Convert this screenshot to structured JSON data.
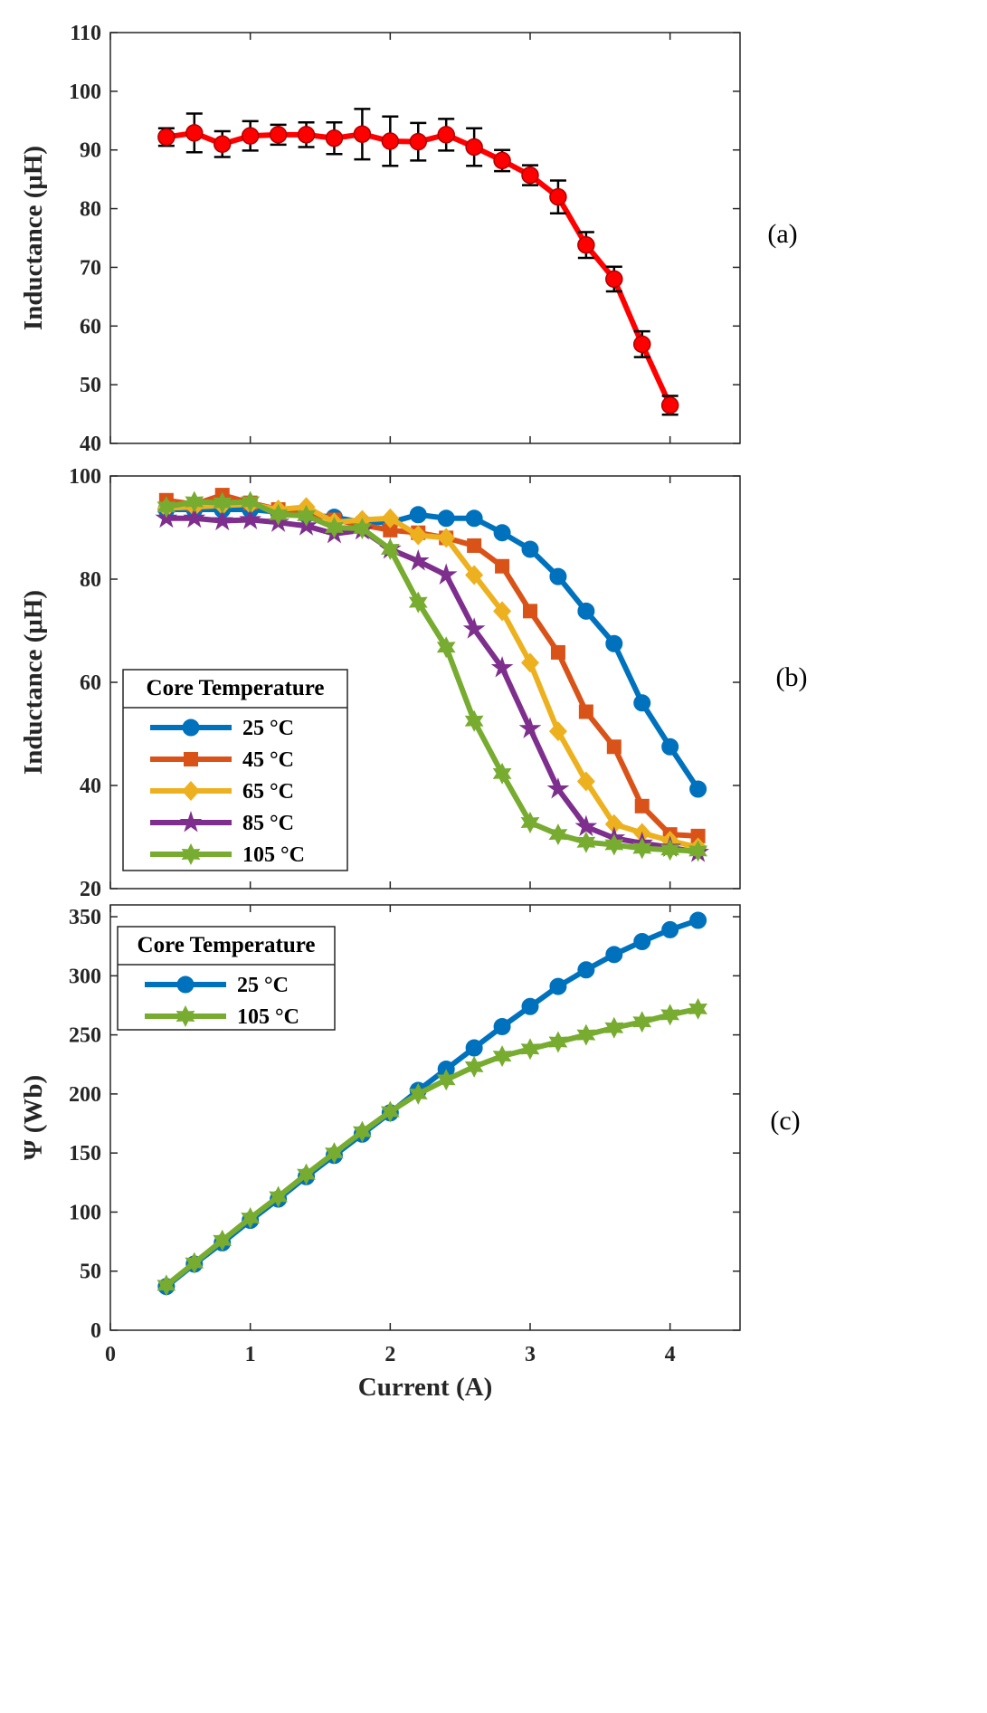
{
  "chart_data": [
    {
      "type": "line",
      "panel_label": "(a)",
      "ylabel": "Inductance (μH)",
      "xlabel": "",
      "xlim": [
        0,
        4.5
      ],
      "ylim": [
        40,
        110
      ],
      "yticks": [
        40,
        50,
        60,
        70,
        80,
        90,
        100,
        110
      ],
      "x": [
        0.4,
        0.6,
        0.8,
        1.0,
        1.2,
        1.4,
        1.6,
        1.8,
        2.0,
        2.2,
        2.4,
        2.6,
        2.8,
        3.0,
        3.2,
        3.4,
        3.6,
        3.8,
        4.0
      ],
      "series": [
        {
          "name": "Inductance",
          "color": "#ff0000",
          "marker": "circle",
          "values": [
            92.2,
            92.9,
            91.0,
            92.4,
            92.6,
            92.6,
            92.0,
            92.7,
            91.5,
            91.4,
            92.6,
            90.5,
            88.2,
            85.7,
            82.0,
            73.8,
            68.0,
            56.9,
            46.5
          ],
          "error": [
            1.5,
            3.3,
            2.2,
            2.5,
            1.7,
            2.1,
            2.7,
            4.3,
            4.2,
            3.2,
            2.7,
            3.2,
            1.8,
            1.7,
            2.8,
            2.2,
            2.1,
            2.2,
            1.6
          ]
        }
      ]
    },
    {
      "type": "line",
      "panel_label": "(b)",
      "ylabel": "Inductance (μH)",
      "xlabel": "",
      "xlim": [
        0,
        4.5
      ],
      "ylim": [
        20,
        100
      ],
      "yticks": [
        20,
        40,
        60,
        80,
        100
      ],
      "legend_title": "Core Temperature",
      "legend_position": "lower-left",
      "x": [
        0.4,
        0.6,
        0.8,
        1.0,
        1.2,
        1.4,
        1.6,
        1.8,
        2.0,
        2.2,
        2.4,
        2.6,
        2.8,
        3.0,
        3.2,
        3.4,
        3.6,
        3.8,
        4.0,
        4.2
      ],
      "series": [
        {
          "name": "25 °C",
          "color": "#0072bd",
          "marker": "circle",
          "values": [
            93.5,
            93.5,
            93.5,
            93.5,
            93.0,
            92.5,
            92.0,
            91.0,
            91.0,
            92.5,
            91.8,
            91.8,
            89.0,
            85.8,
            80.5,
            73.8,
            67.5,
            56.0,
            47.5,
            39.3
          ]
        },
        {
          "name": "45 °C",
          "color": "#d95319",
          "marker": "square",
          "values": [
            95.3,
            94.5,
            96.3,
            94.8,
            93.5,
            93.0,
            91.5,
            90.5,
            89.5,
            89.0,
            88.0,
            86.5,
            82.5,
            73.8,
            65.8,
            54.3,
            47.5,
            36.0,
            30.5,
            30.2
          ]
        },
        {
          "name": "65 °C",
          "color": "#edb120",
          "marker": "diamond",
          "values": [
            93.8,
            94.0,
            94.3,
            94.5,
            93.5,
            94.0,
            91.0,
            91.5,
            91.8,
            88.5,
            88.0,
            80.8,
            73.8,
            63.8,
            50.5,
            40.8,
            32.5,
            30.8,
            29.3,
            28.0
          ]
        },
        {
          "name": "85 °C",
          "color": "#7e2f8e",
          "marker": "star",
          "values": [
            91.8,
            91.8,
            91.3,
            91.5,
            91.0,
            90.3,
            88.8,
            89.5,
            85.8,
            83.5,
            80.8,
            70.3,
            62.8,
            51.0,
            39.3,
            32.0,
            29.8,
            28.8,
            28.0,
            27.0
          ]
        },
        {
          "name": "105 °C",
          "color": "#77ac30",
          "marker": "hexagram",
          "values": [
            94.0,
            95.0,
            94.8,
            95.0,
            92.5,
            92.3,
            90.0,
            89.8,
            85.8,
            75.5,
            66.8,
            52.5,
            42.3,
            32.8,
            30.5,
            29.0,
            28.5,
            27.8,
            27.5,
            27.3
          ]
        }
      ]
    },
    {
      "type": "line",
      "panel_label": "(c)",
      "ylabel": "Ψ (Wb)",
      "xlabel": "Current (A)",
      "xlim": [
        0,
        4.5
      ],
      "ylim": [
        0,
        360
      ],
      "yticks": [
        0,
        50,
        100,
        150,
        200,
        250,
        300,
        350
      ],
      "xticks": [
        0,
        1,
        2,
        3,
        4
      ],
      "legend_title": "Core Temperature",
      "legend_position": "top-left",
      "x": [
        0.4,
        0.6,
        0.8,
        1.0,
        1.2,
        1.4,
        1.6,
        1.8,
        2.0,
        2.2,
        2.4,
        2.6,
        2.8,
        3.0,
        3.2,
        3.4,
        3.6,
        3.8,
        4.0,
        4.2
      ],
      "series": [
        {
          "name": "25 °C",
          "color": "#0072bd",
          "marker": "circle",
          "values": [
            37,
            56,
            74,
            93,
            111,
            130,
            148,
            166,
            184,
            203,
            221,
            239,
            257,
            274,
            291,
            305,
            318,
            329,
            339,
            347
          ]
        },
        {
          "name": "105 °C",
          "color": "#77ac30",
          "marker": "hexagram",
          "values": [
            38,
            57,
            76,
            95,
            113,
            132,
            150,
            168,
            185,
            200,
            212,
            223,
            232,
            238,
            244,
            250,
            256,
            261,
            267,
            272
          ]
        }
      ]
    }
  ]
}
